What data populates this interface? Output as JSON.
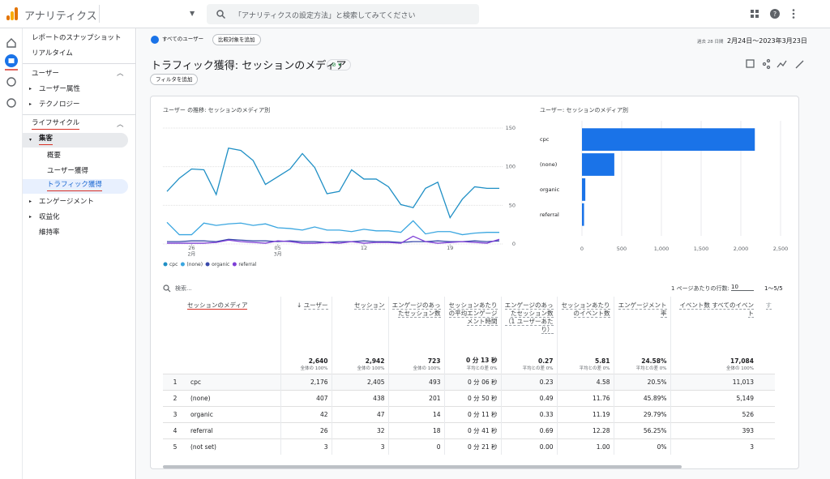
{
  "header": {
    "product": "アナリティクス",
    "search": "「アナリティクスの設定方法」と検索してみてください"
  },
  "sidebar": {
    "items": [
      "レポートのスナップショット",
      "リアルタイム",
      "ユーザー",
      "ユーザー属性",
      "テクノロジー",
      "ライフサイクル",
      "集客",
      "概要",
      "ユーザー獲得",
      "トラフィック獲得",
      "エンゲージメント",
      "収益化",
      "維持率"
    ]
  },
  "toolbar": {
    "segment": "すべてのユーザー",
    "compare": "比較対象を追加",
    "date_prefix": "過去 28 日間",
    "date_range": "2月24日～2023年3月23日"
  },
  "report": {
    "title": "トラフィック獲得: セッションのメディア",
    "filter": "フィルタを追加"
  },
  "chart_data": [
    {
      "type": "line",
      "title": "ユーザー の推移: セッションのメディア別",
      "categories": [
        null,
        null,
        "26",
        null,
        null,
        null,
        null,
        null,
        null,
        "05",
        null,
        null,
        null,
        null,
        null,
        null,
        "12",
        null,
        null,
        null,
        null,
        null,
        null,
        "19",
        null,
        null,
        null,
        null
      ],
      "month_labels": [
        null,
        null,
        "2月",
        null,
        null,
        null,
        null,
        null,
        null,
        "3月",
        null,
        null,
        null,
        null,
        null,
        null,
        null,
        null,
        null,
        null,
        null,
        null,
        null,
        null,
        null,
        null,
        null,
        null
      ],
      "ylim": [
        0,
        150
      ],
      "yticks": [
        0,
        50,
        100,
        150
      ],
      "grid": true,
      "series": [
        {
          "name": "cpc",
          "color": "#1f8fc5",
          "values": [
            68,
            85,
            97,
            96,
            64,
            124,
            121,
            108,
            77,
            87,
            97,
            117,
            99,
            65,
            68,
            96,
            84,
            84,
            74,
            51,
            47,
            72,
            80,
            34,
            58,
            74,
            72,
            72
          ]
        },
        {
          "name": "(none)",
          "color": "#3aa6e0",
          "values": [
            28,
            12,
            12,
            27,
            24,
            26,
            27,
            24,
            26,
            21,
            20,
            18,
            22,
            18,
            18,
            16,
            19,
            17,
            17,
            15,
            30,
            13,
            16,
            16,
            12,
            14,
            15,
            15
          ]
        },
        {
          "name": "organic",
          "color": "#3949ab",
          "values": [
            3,
            3,
            4,
            4,
            3,
            6,
            5,
            4,
            4,
            3,
            4,
            3,
            3,
            2,
            3,
            3,
            4,
            3,
            3,
            2,
            3,
            3,
            4,
            3,
            3,
            4,
            3,
            4
          ]
        },
        {
          "name": "referral",
          "color": "#7e3fd6",
          "values": [
            1,
            1,
            1,
            1,
            2,
            5,
            3,
            2,
            1,
            4,
            3,
            1,
            1,
            2,
            1,
            3,
            1,
            2,
            2,
            1,
            10,
            3,
            1,
            2,
            3,
            2,
            1,
            6
          ]
        }
      ]
    },
    {
      "type": "bar",
      "orientation": "horizontal",
      "title": "ユーザー: セッションのメディア別",
      "categories": [
        "cpc",
        "(none)",
        "organic",
        "referral"
      ],
      "values": [
        2176,
        407,
        42,
        26
      ],
      "color": "#1a73e8",
      "xlim": [
        0,
        2500
      ],
      "xticks": [
        0,
        500,
        {
          "value": 1000,
          "label": "1,000"
        },
        {
          "value": 1500,
          "label": "1,500"
        },
        {
          "value": 2000,
          "label": "2,000"
        },
        {
          "value": 2500,
          "label": "2,500"
        }
      ],
      "grid": true
    }
  ],
  "table": {
    "search": "検索...",
    "rows_per_page_label": "1 ページあたりの行数:",
    "rows_per_page": "10",
    "pagination": "1～5/5",
    "columns": [
      "セッションのメディア",
      "ユーザー",
      "セッション",
      "エンゲージのあったセッション数",
      "セッションあたりの平均エンゲージメント時間",
      "エンゲージのあったセッション数（1 ユーザーあたり）",
      "セッションあたりのイベント数",
      "エンゲージメント率",
      "イベント数 すべてのイベント",
      "す"
    ],
    "totals": [
      {
        "value": "2,640",
        "note": "全体の 100%"
      },
      {
        "value": "2,942",
        "note": "全体の 100%"
      },
      {
        "value": "723",
        "note": "全体の 100%"
      },
      {
        "value": "0 分 13 秒",
        "note": "平均との差 0%"
      },
      {
        "value": "0.27",
        "note": "平均との差 0%"
      },
      {
        "value": "5.81",
        "note": "平均との差 0%"
      },
      {
        "value": "24.58%",
        "note": "平均との差 0%"
      },
      {
        "value": "17,084",
        "note": "全体の 100%"
      }
    ],
    "rows": [
      [
        "1",
        "cpc",
        "2,176",
        "2,405",
        "493",
        "0 分 06 秒",
        "0.23",
        "4.58",
        "20.5%",
        "11,013"
      ],
      [
        "2",
        "(none)",
        "407",
        "438",
        "201",
        "0 分 50 秒",
        "0.49",
        "11.76",
        "45.89%",
        "5,149"
      ],
      [
        "3",
        "organic",
        "42",
        "47",
        "14",
        "0 分 11 秒",
        "0.33",
        "11.19",
        "29.79%",
        "526"
      ],
      [
        "4",
        "referral",
        "26",
        "32",
        "18",
        "0 分 41 秒",
        "0.69",
        "12.28",
        "56.25%",
        "393"
      ],
      [
        "5",
        "(not set)",
        "3",
        "3",
        "0",
        "0 分 21 秒",
        "0.00",
        "1.00",
        "0%",
        "3"
      ]
    ]
  }
}
